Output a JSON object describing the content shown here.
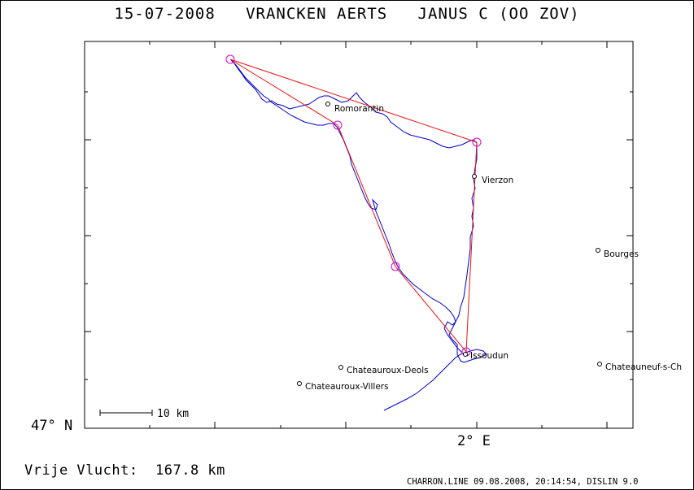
{
  "title": "15-07-2008   VRANCKEN AERTS   JANUS C (OO ZOV)",
  "axes": {
    "lat_label": "47° N",
    "lon_label": "2° E"
  },
  "scale_bar": {
    "label": "10 km"
  },
  "distance_text": "Vrije Vlucht:  167.8 km",
  "footer": "CHARRON.LINE 09.08.2008, 20:14:54, DISLIN 9.0",
  "colors": {
    "track": "#0000cc",
    "task": "#ee1111",
    "turnpoint": "#dd00dd",
    "frame": "#000000"
  },
  "cities": [
    {
      "name": "Romorantin"
    },
    {
      "name": "Vierzon"
    },
    {
      "name": "Bourges"
    },
    {
      "name": "Issoudun"
    },
    {
      "name": "Chateauroux-Deols"
    },
    {
      "name": "Chateauroux-Villers"
    },
    {
      "name": "Chateauneuf-s-Ch"
    }
  ]
}
